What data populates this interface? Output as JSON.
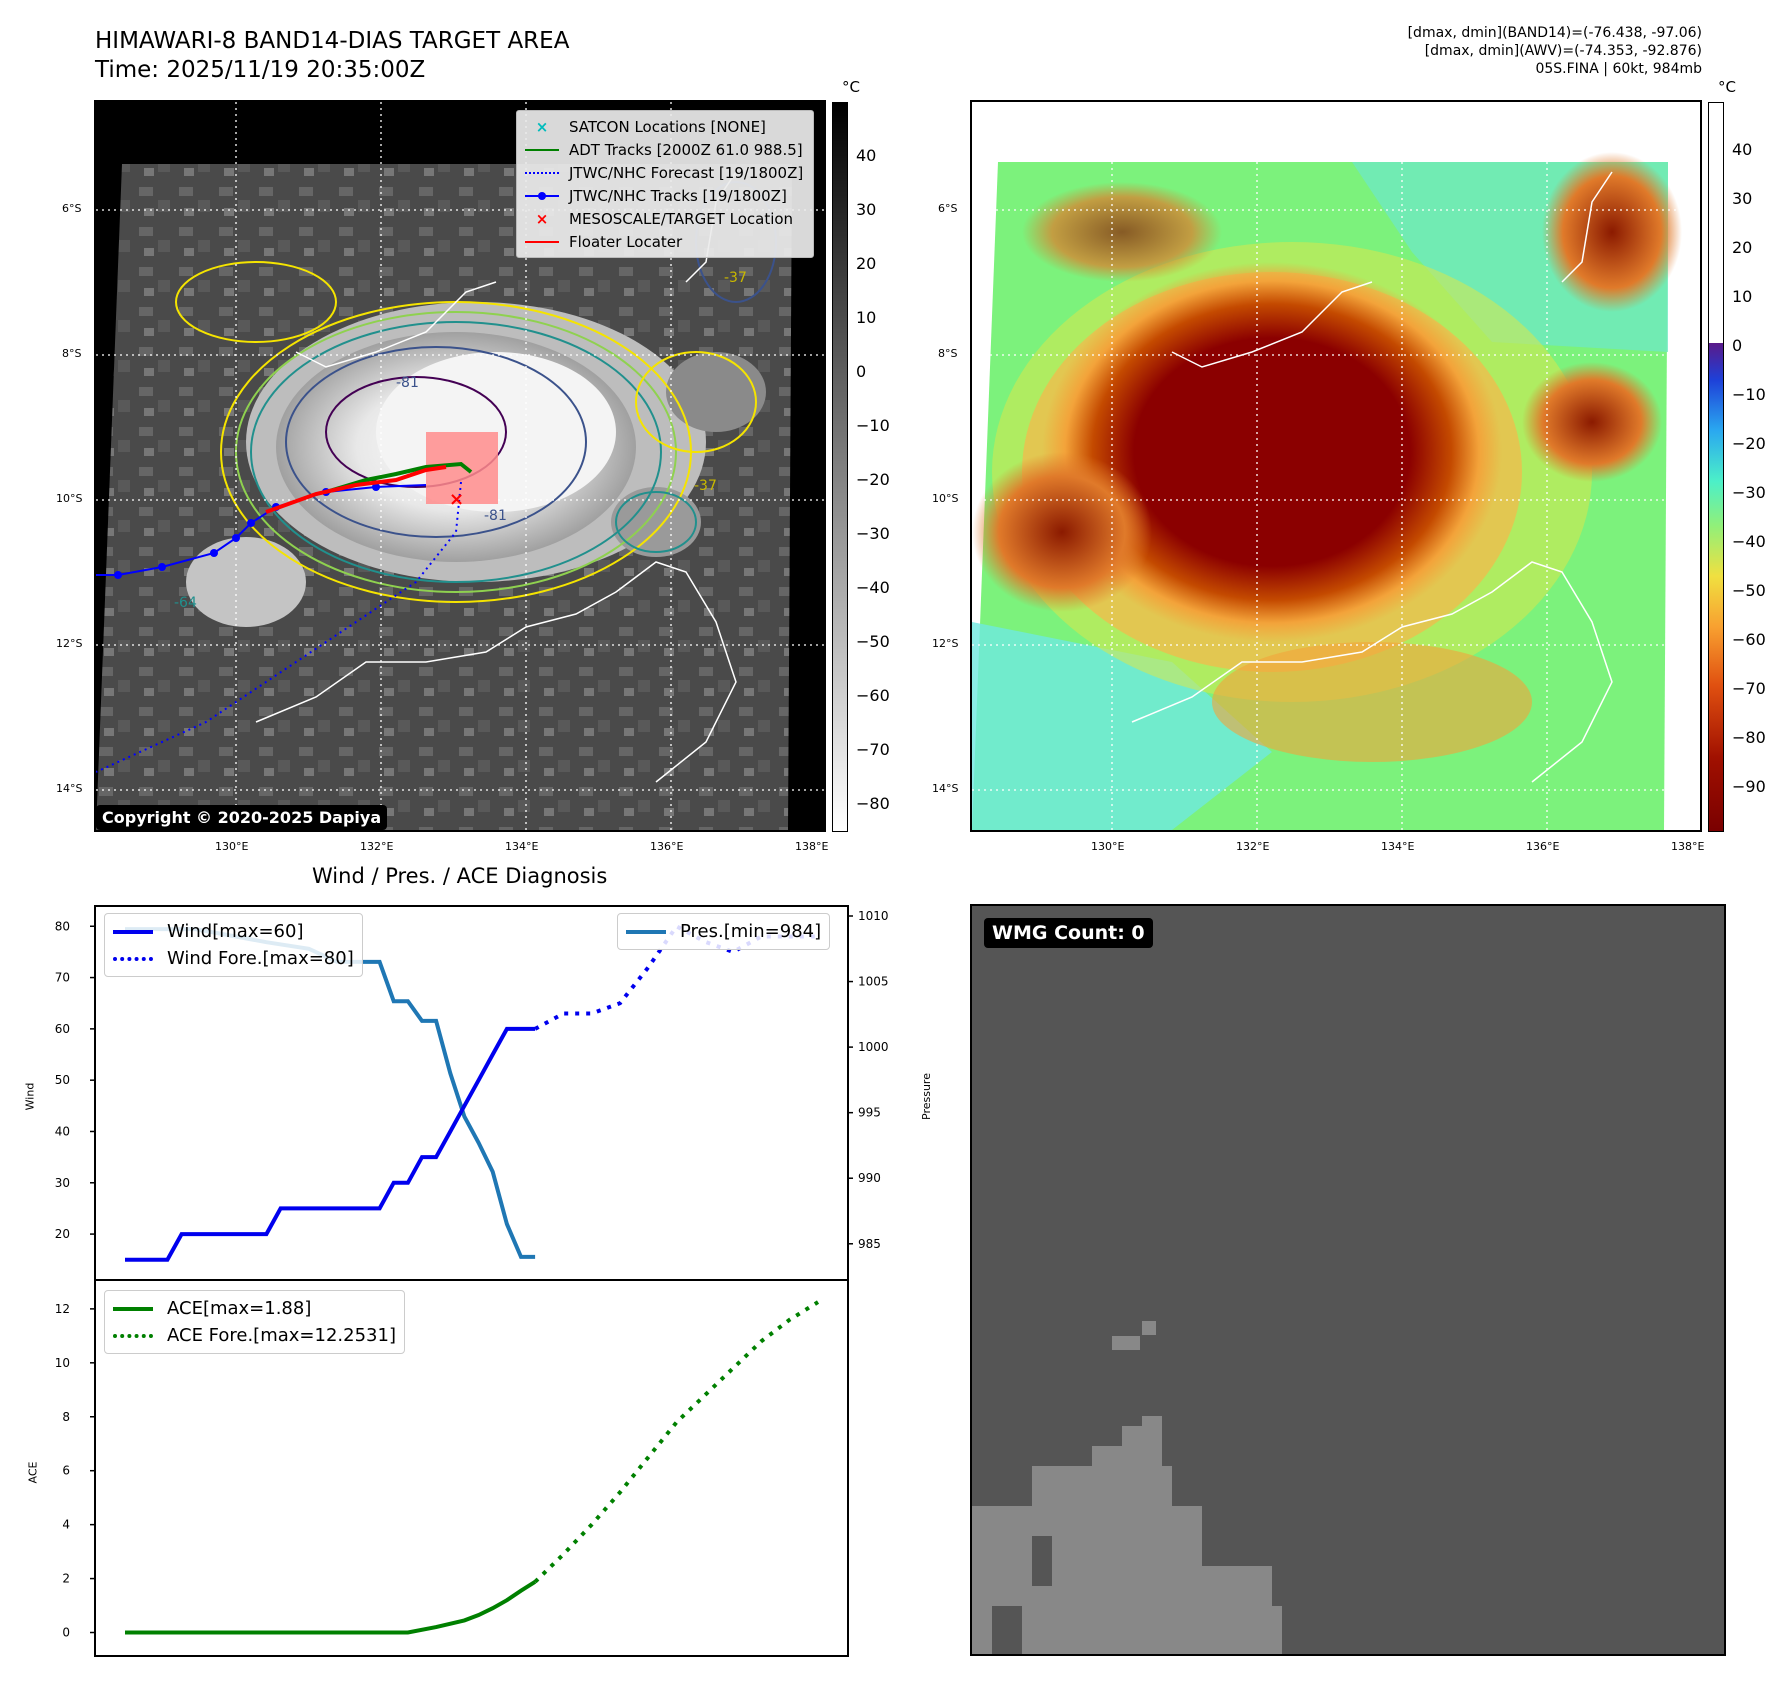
{
  "header": {
    "title_line1": "HIMAWARI-8 BAND14-DIAS TARGET AREA",
    "title_line2": "Time: 2025/11/19 20:35:00Z",
    "right_line1": "[dmax, dmin](BAND14)=(-76.438, -97.06)",
    "right_line2": "[dmax, dmin](AWV)=(-74.353, -92.876)",
    "right_line3": "05S.FINA | 60kt, 984mb"
  },
  "colors": {
    "wind": "#0000ee",
    "pres": "#1f77b4",
    "ace": "#008000",
    "track_blue": "#0000ff",
    "adt": "#008000",
    "target": "#ff0000",
    "wmg_dark": "#555555",
    "wmg_light": "#888888"
  },
  "map_common": {
    "lat_labels": [
      "6°S",
      "8°S",
      "10°S",
      "12°S",
      "14°S"
    ],
    "lon_labels": [
      "130°E",
      "132°E",
      "134°E",
      "136°E",
      "138°E"
    ],
    "unit": "°C"
  },
  "ir_panel": {
    "legend": [
      {
        "label": "SATCON Locations [NONE]",
        "icon": "x-marker-cyan"
      },
      {
        "label": "ADT Tracks [2000Z 61.0 988.5]",
        "icon": "line-green"
      },
      {
        "label": "JTWC/NHC Forecast [19/1800Z]",
        "icon": "dotted-blue"
      },
      {
        "label": "JTWC/NHC Tracks [19/1800Z]",
        "icon": "line-dot-blue"
      },
      {
        "label": "MESOSCALE/TARGET Location",
        "icon": "x-marker-red"
      },
      {
        "label": "Floater Locater",
        "icon": "line-red"
      }
    ],
    "colorbar_ticks": [
      "40",
      "30",
      "20",
      "10",
      "0",
      "−10",
      "−20",
      "−30",
      "−40",
      "−50",
      "−60",
      "−70",
      "−80"
    ],
    "contour_labels": [
      "-81",
      "-81",
      "-64",
      "-37",
      "-37"
    ],
    "copyright": "Copyright © 2020-2025 Dapiya"
  },
  "awv_panel": {
    "colorbar_ticks": [
      "40",
      "30",
      "20",
      "10",
      "0",
      "−10",
      "−20",
      "−30",
      "−40",
      "−50",
      "−60",
      "−70",
      "−80",
      "−90"
    ]
  },
  "diagnosis": {
    "title": "Wind / Pres. / ACE Diagnosis",
    "wind_axis_label": "Wind",
    "pres_axis_label": "Pressure",
    "ace_axis_label": "ACE",
    "wind_ticks": [
      "80",
      "70",
      "60",
      "50",
      "40",
      "30",
      "20"
    ],
    "pres_ticks": [
      "1010",
      "1005",
      "1000",
      "995",
      "990",
      "985"
    ],
    "ace_ticks": [
      "12",
      "10",
      "8",
      "6",
      "4",
      "2",
      "0"
    ],
    "legend_wind": "Wind[max=60]",
    "legend_wind_fore": "Wind Fore.[max=80]",
    "legend_pres": "Pres.[min=984]",
    "legend_ace": "ACE[max=1.88]",
    "legend_ace_fore": "ACE Fore.[max=12.2531]"
  },
  "wmg": {
    "label": "WMG Count: 0"
  },
  "chart_data": [
    {
      "type": "line",
      "title": "Wind / Pres. / ACE Diagnosis",
      "ylabel": "Wind",
      "ylim": [
        13,
        82
      ],
      "x": [
        0,
        1,
        2,
        3,
        4,
        5,
        6,
        7,
        8,
        9,
        10,
        11,
        12,
        13,
        14,
        15,
        16,
        17,
        18,
        19,
        20,
        21,
        22,
        23,
        24,
        25,
        26,
        27,
        28,
        29
      ],
      "series": [
        {
          "name": "Wind[max=60]",
          "style": "solid",
          "color": "#0000ee",
          "x": [
            0,
            3,
            4,
            10,
            11,
            18,
            19,
            20,
            21,
            22,
            23,
            24,
            25,
            26,
            27,
            28,
            29
          ],
          "values": [
            15,
            15,
            20,
            20,
            25,
            25,
            30,
            30,
            35,
            35,
            40,
            45,
            50,
            55,
            60,
            60,
            60
          ]
        },
        {
          "name": "Wind Fore.[max=80]",
          "style": "dotted",
          "color": "#0000ee",
          "x": [
            29,
            31,
            33,
            35,
            37,
            39,
            41,
            43,
            45,
            47,
            49
          ],
          "values": [
            60,
            63,
            63,
            65,
            72,
            80,
            77,
            75,
            78,
            78,
            78
          ]
        }
      ]
    },
    {
      "type": "line",
      "ylabel": "Pressure",
      "ylim": [
        983,
        1010
      ],
      "series": [
        {
          "name": "Pres.[min=984]",
          "style": "solid",
          "color": "#1f77b4",
          "x": [
            0,
            5,
            10,
            13,
            15,
            16,
            17,
            18,
            19,
            20,
            21,
            22,
            23,
            24,
            25,
            26,
            27,
            28,
            29
          ],
          "values": [
            1009,
            1009,
            1008,
            1007.5,
            1006.5,
            1006.5,
            1006.5,
            1006.5,
            1003.5,
            1003.5,
            1002,
            1002,
            998,
            994.7,
            992.7,
            990.5,
            986.5,
            984,
            984
          ]
        }
      ]
    },
    {
      "type": "line",
      "ylabel": "ACE",
      "ylim": [
        -0.5,
        12.7
      ],
      "series": [
        {
          "name": "ACE[max=1.88]",
          "style": "solid",
          "color": "#008000",
          "x": [
            0,
            20,
            22,
            24,
            25,
            26,
            27,
            28,
            29
          ],
          "values": [
            0,
            0,
            0.2,
            0.45,
            0.65,
            0.9,
            1.2,
            1.55,
            1.88
          ]
        },
        {
          "name": "ACE Fore.[max=12.2531]",
          "style": "dotted",
          "color": "#008000",
          "x": [
            29,
            31,
            33,
            35,
            37,
            39,
            41,
            43,
            45,
            47,
            49
          ],
          "values": [
            1.88,
            2.9,
            4.0,
            5.2,
            6.5,
            7.8,
            8.8,
            9.8,
            10.8,
            11.6,
            12.2531
          ]
        }
      ]
    }
  ]
}
